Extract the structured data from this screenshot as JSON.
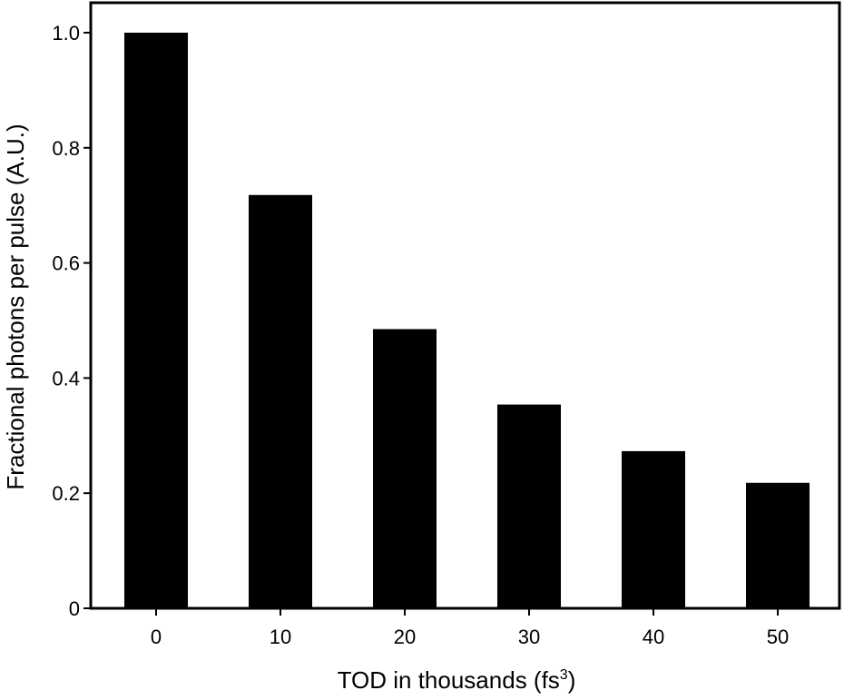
{
  "chart_data": {
    "type": "bar",
    "categories": [
      "0",
      "10",
      "20",
      "30",
      "40",
      "50"
    ],
    "values": [
      1.0,
      0.718,
      0.485,
      0.354,
      0.273,
      0.218
    ],
    "title": "",
    "xlabel": "TOD in thousands (fs",
    "xlabel_superscript": "3",
    "xlabel_close": ")",
    "ylabel": "Fractional photons per pulse (A.U.)",
    "ylim": [
      0,
      1.05
    ],
    "yticks": [
      0,
      0.2,
      0.4,
      0.6,
      0.8,
      1.0
    ],
    "ytick_labels": [
      "0",
      "0.2",
      "0.4",
      "0.6",
      "0.8",
      "1.0"
    ],
    "grid": false,
    "legend": "none",
    "bar_color": "#000000",
    "axes_color": "#000000"
  }
}
